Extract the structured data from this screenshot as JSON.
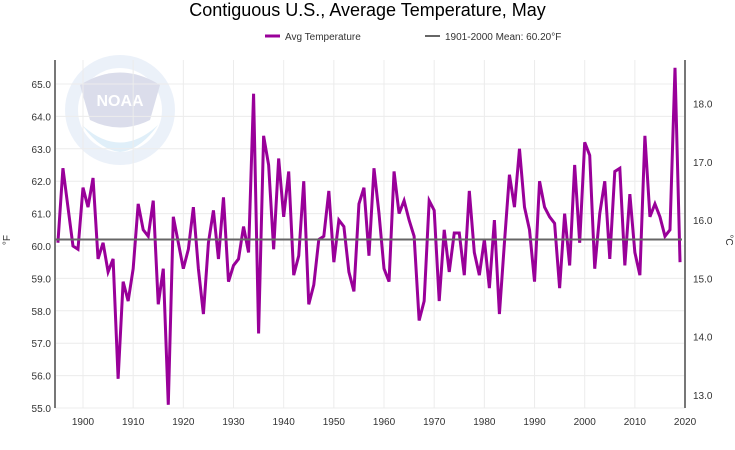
{
  "chart_data": {
    "type": "line",
    "title": "Contiguous U.S., Average Temperature, May",
    "ylabel": "°F",
    "y2label": "°C",
    "xlim": [
      1895,
      2020
    ],
    "ylim": [
      55.0,
      65.7
    ],
    "xticks": [
      "1900",
      "1910",
      "1920",
      "1930",
      "1940",
      "1950",
      "1960",
      "1970",
      "1980",
      "1990",
      "2000",
      "2010",
      "2020"
    ],
    "yticks": [
      "55.0",
      "56.0",
      "57.0",
      "58.0",
      "59.0",
      "60.0",
      "61.0",
      "62.0",
      "63.0",
      "64.0",
      "65.0"
    ],
    "y2ticks": [
      "13.0",
      "14.0",
      "15.0",
      "16.0",
      "17.0",
      "18.0"
    ],
    "grid": true,
    "legend_position": "top",
    "series": [
      {
        "name": "Avg Temperature",
        "color": "#990099",
        "x_start": 1895,
        "values": [
          60.1,
          62.4,
          61.2,
          60.0,
          59.9,
          61.8,
          61.2,
          62.1,
          59.6,
          60.1,
          59.2,
          59.6,
          55.9,
          58.9,
          58.3,
          59.3,
          61.3,
          60.5,
          60.3,
          61.4,
          58.2,
          59.3,
          55.1,
          60.9,
          60.1,
          59.3,
          59.9,
          61.2,
          59.3,
          57.9,
          60.1,
          61.1,
          59.6,
          61.5,
          58.9,
          59.4,
          59.6,
          60.6,
          59.8,
          64.7,
          57.3,
          63.4,
          62.5,
          59.9,
          62.7,
          60.9,
          62.3,
          59.1,
          59.7,
          62.0,
          58.2,
          58.8,
          60.2,
          60.3,
          61.7,
          59.5,
          60.8,
          60.6,
          59.2,
          58.6,
          61.3,
          61.8,
          59.7,
          62.4,
          61.0,
          59.3,
          58.9,
          62.3,
          61.0,
          61.4,
          60.8,
          60.3,
          57.7,
          58.3,
          61.4,
          61.1,
          58.3,
          60.5,
          59.2,
          60.4,
          60.4,
          59.1,
          61.7,
          59.8,
          59.1,
          60.2,
          58.7,
          60.8,
          57.9,
          60.1,
          62.2,
          61.2,
          63.0,
          61.2,
          60.5,
          58.9,
          62.0,
          61.2,
          60.9,
          60.7,
          58.7,
          61.0,
          59.4,
          62.5,
          60.1,
          63.2,
          62.8,
          59.3,
          61.0,
          62.0,
          59.6,
          62.3,
          62.4,
          59.4,
          61.6,
          59.8,
          59.1,
          63.4,
          60.9,
          61.3,
          60.9,
          60.3,
          60.5,
          65.5,
          59.5
        ]
      },
      {
        "name": "1901-2000 Mean: 60.20°F",
        "color": "#666666",
        "value": 60.2
      }
    ]
  },
  "logo_text": "NOAA"
}
